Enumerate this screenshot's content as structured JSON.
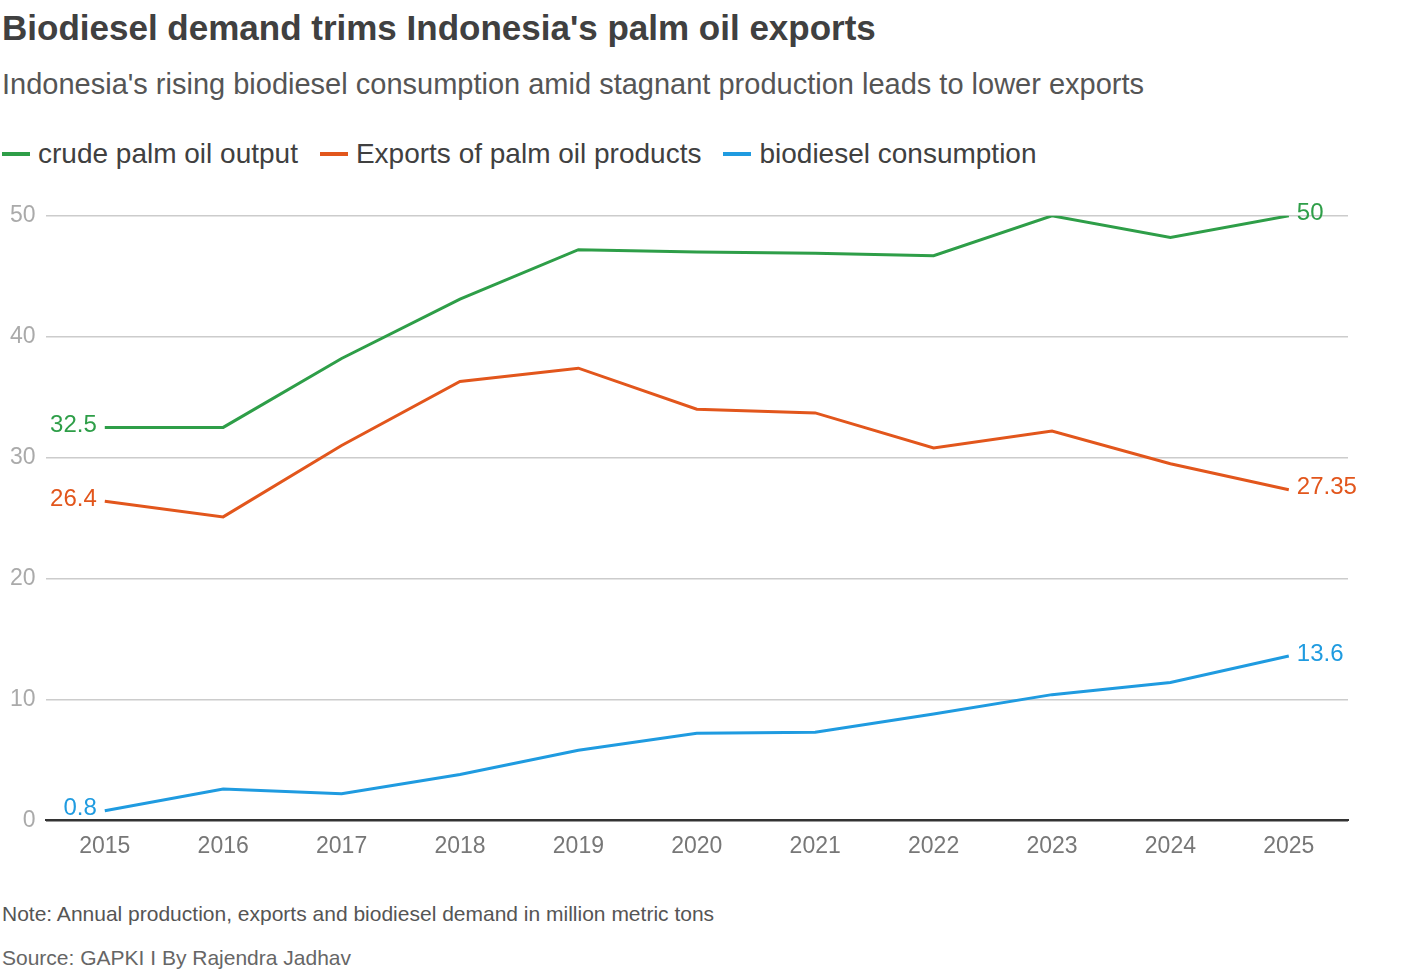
{
  "chart_data": {
    "type": "line",
    "title": "Biodiesel demand trims Indonesia's palm oil exports",
    "subtitle": "Indonesia's rising biodiesel consumption amid stagnant production leads to lower exports",
    "note": "Note: Annual production, exports and biodiesel demand in million metric tons",
    "source": "Source: GAPKI I By Rajendra Jadhav",
    "categories": [
      "2015",
      "2016",
      "2017",
      "2018",
      "2019",
      "2020",
      "2021",
      "2022",
      "2023",
      "2024",
      "2025"
    ],
    "ylim": [
      0,
      50
    ],
    "yticks": [
      0,
      10,
      20,
      30,
      40,
      50
    ],
    "grid": true,
    "legend": "top-left",
    "data_labels": true,
    "series": [
      {
        "name": "crude palm oil output",
        "color": "#2e9e48",
        "values": [
          32.5,
          32.5,
          38.2,
          43.1,
          47.2,
          47.0,
          46.9,
          46.7,
          50.0,
          48.2,
          50
        ],
        "value_labels": [
          "32.5",
          null,
          null,
          null,
          null,
          null,
          null,
          null,
          null,
          null,
          "50"
        ]
      },
      {
        "name": "Exports of palm oil products",
        "color": "#e2561c",
        "values": [
          26.4,
          25.1,
          31.0,
          36.3,
          37.4,
          34.0,
          33.7,
          30.8,
          32.2,
          29.5,
          27.35
        ],
        "value_labels": [
          "26.4",
          null,
          null,
          null,
          null,
          null,
          null,
          null,
          null,
          null,
          "27.35"
        ]
      },
      {
        "name": "biodiesel consumption",
        "color": "#1f9be0",
        "values": [
          0.8,
          2.6,
          2.2,
          3.8,
          5.8,
          7.2,
          7.3,
          8.8,
          10.4,
          11.4,
          13.6
        ],
        "value_labels": [
          "0.8",
          null,
          null,
          null,
          null,
          null,
          null,
          null,
          null,
          null,
          "13.6"
        ]
      }
    ]
  }
}
